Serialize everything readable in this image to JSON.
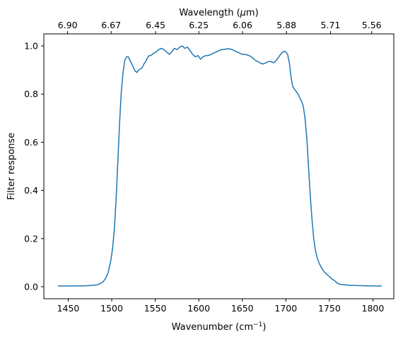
{
  "chart_data": {
    "type": "line",
    "title": "",
    "xlabel": "Wavenumber (cm",
    "xlabel_sup": "−1",
    "xlabel_end": ")",
    "ylabel": "Filter response",
    "top_xlabel_pre": "Wavelength (",
    "top_xlabel_mu": "μ",
    "top_xlabel_post": "m)",
    "xlim": [
      1422,
      1824
    ],
    "ylim": [
      -0.05,
      1.05
    ],
    "x_ticks": [
      1450,
      1500,
      1550,
      1600,
      1650,
      1700,
      1750,
      1800
    ],
    "y_ticks": [
      0.0,
      0.2,
      0.4,
      0.6,
      0.8,
      1.0
    ],
    "top_ticks": [
      {
        "wavenumber": 1449.3,
        "label": "6.90"
      },
      {
        "wavenumber": 1499.3,
        "label": "6.67"
      },
      {
        "wavenumber": 1550.4,
        "label": "6.45"
      },
      {
        "wavenumber": 1600.0,
        "label": "6.25"
      },
      {
        "wavenumber": 1650.2,
        "label": "6.06"
      },
      {
        "wavenumber": 1700.7,
        "label": "5.88"
      },
      {
        "wavenumber": 1751.3,
        "label": "5.71"
      },
      {
        "wavenumber": 1798.6,
        "label": "5.56"
      }
    ],
    "series": [
      {
        "color": "#1f77b4",
        "x": [
          1438,
          1450,
          1460,
          1470,
          1480,
          1485,
          1490,
          1493,
          1496,
          1499,
          1501,
          1503,
          1505,
          1507,
          1509,
          1511,
          1513,
          1515,
          1517,
          1519,
          1521,
          1523,
          1525,
          1527,
          1529,
          1531,
          1533,
          1535,
          1537,
          1539,
          1541,
          1543,
          1545,
          1548,
          1551,
          1554,
          1557,
          1560,
          1563,
          1566,
          1569,
          1572,
          1575,
          1578,
          1581,
          1584,
          1587,
          1590,
          1593,
          1596,
          1599,
          1602,
          1605,
          1608,
          1611,
          1614,
          1617,
          1620,
          1623,
          1626,
          1629,
          1632,
          1635,
          1638,
          1641,
          1644,
          1647,
          1650,
          1653,
          1656,
          1659,
          1662,
          1665,
          1668,
          1671,
          1674,
          1677,
          1680,
          1683,
          1686,
          1689,
          1692,
          1695,
          1698,
          1700,
          1702,
          1704,
          1706,
          1708,
          1710,
          1712,
          1714,
          1716,
          1718,
          1720,
          1722,
          1724,
          1726,
          1728,
          1730,
          1732,
          1734,
          1736,
          1738,
          1740,
          1742,
          1744,
          1746,
          1748,
          1750,
          1753,
          1756,
          1759,
          1762,
          1770,
          1780,
          1790,
          1800,
          1810
        ],
        "y": [
          0.003,
          0.003,
          0.003,
          0.004,
          0.006,
          0.01,
          0.02,
          0.035,
          0.06,
          0.11,
          0.16,
          0.24,
          0.36,
          0.52,
          0.68,
          0.81,
          0.89,
          0.94,
          0.955,
          0.955,
          0.94,
          0.925,
          0.91,
          0.895,
          0.89,
          0.9,
          0.905,
          0.91,
          0.925,
          0.935,
          0.95,
          0.96,
          0.96,
          0.97,
          0.975,
          0.985,
          0.99,
          0.985,
          0.975,
          0.965,
          0.975,
          0.99,
          0.985,
          0.995,
          1.0,
          0.99,
          0.995,
          0.98,
          0.965,
          0.955,
          0.96,
          0.945,
          0.955,
          0.96,
          0.96,
          0.965,
          0.97,
          0.975,
          0.98,
          0.985,
          0.985,
          0.988,
          0.988,
          0.985,
          0.98,
          0.975,
          0.97,
          0.965,
          0.965,
          0.962,
          0.958,
          0.95,
          0.94,
          0.935,
          0.928,
          0.925,
          0.93,
          0.935,
          0.935,
          0.93,
          0.94,
          0.955,
          0.97,
          0.978,
          0.975,
          0.965,
          0.93,
          0.87,
          0.83,
          0.82,
          0.81,
          0.8,
          0.785,
          0.77,
          0.75,
          0.7,
          0.62,
          0.5,
          0.38,
          0.28,
          0.2,
          0.15,
          0.12,
          0.1,
          0.085,
          0.072,
          0.062,
          0.055,
          0.048,
          0.042,
          0.032,
          0.025,
          0.015,
          0.01,
          0.007,
          0.005,
          0.004,
          0.003,
          0.003
        ]
      }
    ]
  }
}
